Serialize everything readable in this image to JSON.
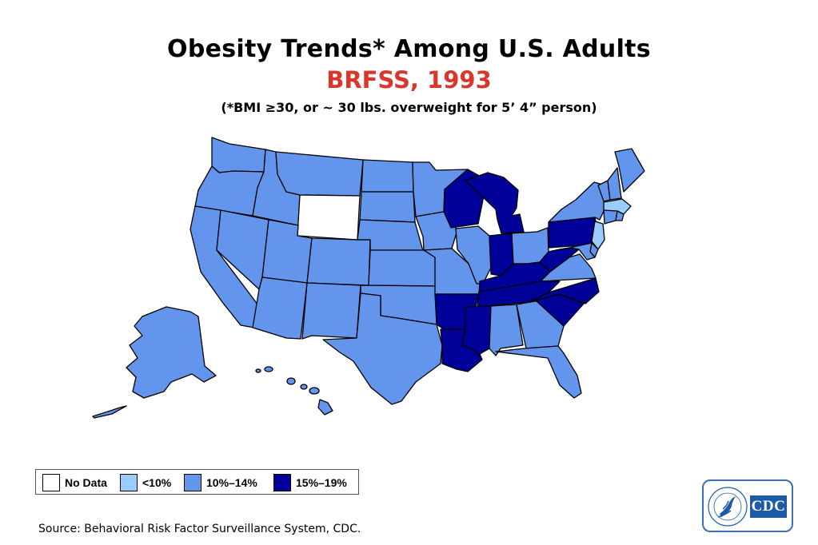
{
  "title": "Obesity Trends* Among U.S. Adults",
  "subtitle": "BRFSS, 1993",
  "note": "(*BMI ≥30, or ~ 30 lbs. overweight for 5’ 4” person)",
  "legend": [
    {
      "key": "none",
      "label": "No Data",
      "color": "#ffffff"
    },
    {
      "key": "low",
      "label": "<10%",
      "color": "#99ccff"
    },
    {
      "key": "mid",
      "label": "10%–14%",
      "color": "#6495ed"
    },
    {
      "key": "high",
      "label": "15%–19%",
      "color": "#000099"
    }
  ],
  "states": {
    "WA": "mid",
    "OR": "mid",
    "CA": "mid",
    "NV": "mid",
    "ID": "mid",
    "MT": "mid",
    "WY": "none",
    "UT": "mid",
    "AZ": "mid",
    "CO": "mid",
    "NM": "mid",
    "ND": "mid",
    "SD": "mid",
    "NE": "mid",
    "KS": "mid",
    "OK": "mid",
    "TX": "mid",
    "MN": "mid",
    "IA": "mid",
    "MO": "mid",
    "AR": "high",
    "LA": "high",
    "WI": "high",
    "IL": "mid",
    "MI": "high",
    "IN": "high",
    "OH": "mid",
    "KY": "high",
    "TN": "high",
    "MS": "high",
    "AL": "mid",
    "GA": "mid",
    "FL": "mid",
    "SC": "high",
    "NC": "high",
    "VA": "mid",
    "WV": "high",
    "PA": "high",
    "NY": "mid",
    "VT": "mid",
    "NH": "mid",
    "ME": "mid",
    "MA": "low",
    "RI": "mid",
    "CT": "mid",
    "NJ": "low",
    "DE": "mid",
    "MD": "mid",
    "AK": "mid",
    "HI": "mid"
  },
  "source": "Source: Behavioral Risk Factor Surveillance System, CDC.",
  "logo": {
    "text": "CDC",
    "ring_text": "DEPARTMENT OF HEALTH & HUMAN SERVICES · USA",
    "color": "#1d5aa8"
  }
}
